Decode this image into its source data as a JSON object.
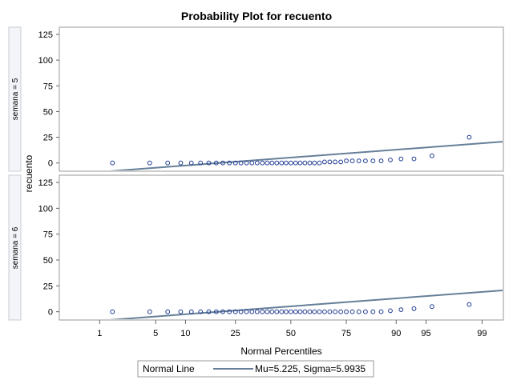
{
  "chart_data": {
    "type": "scatter",
    "title": "Probability Plot for recuento",
    "xlabel": "Normal Percentiles",
    "ylabel": "recuento",
    "x_scale": "normal-probability",
    "xlim": [
      0.25,
      99.5
    ],
    "ylim": [
      -8,
      132
    ],
    "x_ticks": [
      1,
      5,
      10,
      25,
      50,
      75,
      90,
      95,
      99
    ],
    "y_ticks": [
      0,
      25,
      50,
      75,
      100,
      125
    ],
    "grid": false,
    "legend": {
      "placement": "bottom",
      "title": "Normal Line",
      "entries": [
        {
          "label": "Mu=5.225, Sigma=5.9935",
          "color": "#667f98"
        }
      ]
    },
    "colors": {
      "marker": "#1f3a93",
      "line": "#667f98",
      "strip": "#f3f5f9"
    },
    "panels": [
      {
        "label": "semana = 5",
        "percentiles": [
          1.5,
          4.3,
          6.7,
          9.0,
          11.3,
          13.6,
          15.9,
          18.2,
          20.4,
          22.7,
          25.0,
          27.2,
          29.5,
          31.8,
          34.1,
          36.4,
          38.7,
          40.9,
          43.2,
          45.5,
          47.7,
          50.0,
          52.3,
          54.5,
          56.8,
          59.1,
          61.3,
          63.6,
          65.9,
          68.2,
          70.5,
          72.8,
          75.0,
          77.3,
          79.6,
          81.8,
          84.1,
          86.4,
          88.7,
          91.0,
          93.3,
          95.7,
          98.5
        ],
        "values": [
          0,
          0,
          0,
          0,
          0,
          0,
          0,
          0,
          0,
          0,
          0,
          0,
          0,
          0,
          0,
          0,
          0,
          0,
          0,
          0,
          0,
          0,
          0,
          0,
          0,
          0,
          0,
          0,
          1,
          1,
          1,
          1,
          2,
          2,
          2,
          2,
          2,
          2,
          3,
          4,
          4,
          7,
          25
        ]
      },
      {
        "label": "semana = 6",
        "percentiles": [
          1.5,
          4.3,
          6.7,
          9.0,
          11.3,
          13.6,
          15.9,
          18.2,
          20.4,
          22.7,
          25.0,
          27.2,
          29.5,
          31.8,
          34.1,
          36.4,
          38.7,
          40.9,
          43.2,
          45.5,
          47.7,
          50.0,
          52.3,
          54.5,
          56.8,
          59.1,
          61.3,
          63.6,
          65.9,
          68.2,
          70.5,
          72.8,
          75.0,
          77.3,
          79.6,
          81.8,
          84.1,
          86.4,
          88.7,
          91.0,
          93.3,
          95.7,
          98.5
        ],
        "values": [
          0,
          0,
          0,
          0,
          0,
          0,
          0,
          0,
          0,
          0,
          0,
          0,
          0,
          0,
          0,
          0,
          0,
          0,
          0,
          0,
          0,
          0,
          0,
          0,
          0,
          0,
          0,
          0,
          0,
          0,
          0,
          0,
          0,
          0,
          0,
          0,
          0,
          0,
          1,
          2,
          3,
          5,
          7
        ]
      }
    ],
    "normal_line": {
      "mu": 5.225,
      "sigma": 5.9935
    }
  }
}
